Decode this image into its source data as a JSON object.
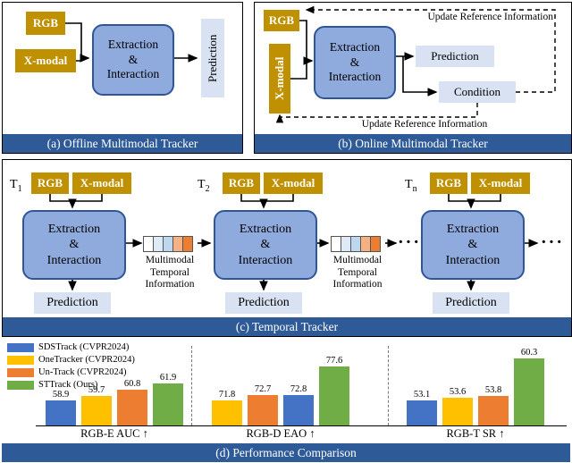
{
  "figure": {
    "panel_a": {
      "caption": "(a) Offline Multimodal Tracker",
      "rgb_label": "RGB",
      "xmodal_label": "X-modal",
      "extraction_label": "Extraction\n&\nInteraction",
      "prediction_label": "Prediction"
    },
    "panel_b": {
      "caption": "(b) Online Multimodal Tracker",
      "rgb_label": "RGB",
      "xmodal_label": "X-modal",
      "extraction_label": "Extraction\n&\nInteraction",
      "prediction_label": "Prediction",
      "condition_label": "Condition",
      "update_top_label": "Update Reference Information",
      "update_bottom_label": "Update Reference Information"
    },
    "panel_c": {
      "caption": "(c) Temporal Tracker",
      "steps": [
        {
          "t_base": "T",
          "t_sub": "1"
        },
        {
          "t_base": "T",
          "t_sub": "2"
        },
        {
          "t_base": "T",
          "t_sub": "n"
        }
      ],
      "rgb_label": "RGB",
      "xmodal_label": "X-modal",
      "extraction_label": "Extraction\n&\nInteraction",
      "prediction_label": "Prediction",
      "temporal_label": "Multimodal\nTemporal\nInformation",
      "dots": "···",
      "token_colors": [
        "#FFFFFF",
        "#DEEBF7",
        "#BDD7EE",
        "#F4B183",
        "#ED7D31"
      ]
    },
    "panel_d": {
      "caption": "(d) Performance Comparison"
    }
  },
  "colors": {
    "modal_box": "#BF9000",
    "extraction_fill": "#8FAADC",
    "extraction_border": "#2F5597",
    "light_box": "#D9E2F3",
    "caption_bar": "#2E5B97"
  },
  "chart_data": {
    "type": "bar",
    "title": "(d) Performance Comparison",
    "legend_position": "top-left",
    "legend": [
      {
        "name": "SDSTrack (CVPR2024)",
        "color": "#4472C4"
      },
      {
        "name": "OneTracker (CVPR2024)",
        "color": "#FFC000"
      },
      {
        "name": "Un-Track (CVPR2024)",
        "color": "#ED7D31"
      },
      {
        "name": "STTrack (Ours)",
        "color": "#70AD47"
      }
    ],
    "groups": [
      {
        "label": "RGB-E AUC ↑",
        "bars": [
          {
            "series": "SDSTrack (CVPR2024)",
            "color": "#4472C4",
            "value": 58.9
          },
          {
            "series": "OneTracker (CVPR2024)",
            "color": "#FFC000",
            "value": 59.7
          },
          {
            "series": "Un-Track (CVPR2024)",
            "color": "#ED7D31",
            "value": 60.8
          },
          {
            "series": "STTrack (Ours)",
            "color": "#70AD47",
            "value": 61.9
          }
        ]
      },
      {
        "label": "RGB-D EAO ↑",
        "bars": [
          {
            "series": "OneTracker (CVPR2024)",
            "color": "#FFC000",
            "value": 71.8
          },
          {
            "series": "Un-Track (CVPR2024)",
            "color": "#ED7D31",
            "value": 72.7
          },
          {
            "series": "SDSTrack (CVPR2024)",
            "color": "#4472C4",
            "value": 72.8
          },
          {
            "series": "STTrack (Ours)",
            "color": "#70AD47",
            "value": 77.6
          }
        ]
      },
      {
        "label": "RGB-T SR ↑",
        "bars": [
          {
            "series": "SDSTrack (CVPR2024)",
            "color": "#4472C4",
            "value": 53.1
          },
          {
            "series": "OneTracker (CVPR2024)",
            "color": "#FFC000",
            "value": 53.6
          },
          {
            "series": "Un-Track (CVPR2024)",
            "color": "#ED7D31",
            "value": 53.8
          },
          {
            "series": "STTrack (Ours)",
            "color": "#70AD47",
            "value": 60.3
          }
        ]
      }
    ]
  }
}
